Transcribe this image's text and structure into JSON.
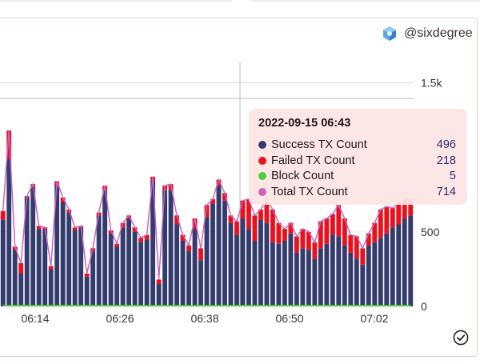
{
  "brand": {
    "name": "@sixdegree",
    "logo_icon": "cube-logo-icon"
  },
  "tooltip": {
    "title": "2022-09-15 06:43",
    "items": [
      {
        "name": "Success TX Count",
        "value": "496",
        "color": "#343c6e"
      },
      {
        "name": "Failed TX Count",
        "value": "218",
        "color": "#e8121f"
      },
      {
        "name": "Block Count",
        "value": "5",
        "color": "#4fcf3a"
      },
      {
        "name": "Total TX Count",
        "value": "714",
        "color": "#c865c0"
      }
    ]
  },
  "footer": {
    "status_icon": "check-circle-icon"
  },
  "chart_data": {
    "type": "bar",
    "stacked": true,
    "x_ticks": [
      "06:14",
      "06:26",
      "06:38",
      "06:50",
      "07:02"
    ],
    "y_ticks": [
      "0",
      "500",
      "1.5k"
    ],
    "ylim": [
      0,
      1550
    ],
    "grid": "horizontal",
    "crosshair_x": "06:43",
    "series": [
      {
        "name": "Success TX Count",
        "kind": "bar",
        "color": "#343c6e",
        "values": [
          580,
          990,
          380,
          220,
          730,
          800,
          520,
          520,
          250,
          810,
          700,
          630,
          510,
          530,
          200,
          370,
          610,
          780,
          490,
          400,
          530,
          590,
          500,
          430,
          450,
          840,
          150,
          780,
          780,
          550,
          440,
          370,
          520,
          310,
          600,
          690,
          810,
          710,
          560,
          480,
          590,
          520,
          440,
          580,
          560,
          430,
          420,
          440,
          490,
          360,
          390,
          380,
          320,
          390,
          420,
          480,
          470,
          410,
          360,
          320,
          280,
          410,
          430,
          460,
          490,
          530,
          550,
          590,
          610
        ]
      },
      {
        "name": "Failed TX Count",
        "kind": "bar",
        "color": "#e8121f",
        "values": [
          60,
          190,
          20,
          70,
          10,
          20,
          20,
          10,
          20,
          30,
          30,
          20,
          20,
          10,
          20,
          20,
          20,
          30,
          20,
          20,
          30,
          20,
          30,
          30,
          30,
          30,
          30,
          30,
          40,
          60,
          40,
          40,
          70,
          80,
          80,
          30,
          40,
          50,
          50,
          90,
          120,
          200,
          170,
          70,
          160,
          220,
          140,
          80,
          70,
          110,
          130,
          120,
          110,
          180,
          170,
          140,
          210,
          180,
          120,
          150,
          110,
          80,
          130,
          190,
          180,
          130,
          140,
          130,
          110
        ]
      },
      {
        "name": "Block Count",
        "kind": "line",
        "color": "#4fcf3a",
        "values": [
          5,
          5,
          5,
          5,
          5,
          5,
          5,
          5,
          5,
          5,
          5,
          5,
          5,
          5,
          5,
          5,
          5,
          5,
          5,
          5,
          5,
          5,
          5,
          5,
          5,
          5,
          5,
          5,
          5,
          5,
          5,
          5,
          5,
          5,
          5,
          5,
          5,
          5,
          5,
          5,
          5,
          5,
          5,
          5,
          5,
          5,
          5,
          5,
          5,
          5,
          5,
          5,
          5,
          5,
          5,
          5,
          5,
          5,
          5,
          5,
          5,
          5,
          5,
          5,
          5,
          5,
          5,
          5,
          5
        ]
      },
      {
        "name": "Total TX Count",
        "kind": "line",
        "color": "#c865c0",
        "values": [
          640,
          1180,
          400,
          290,
          740,
          820,
          540,
          530,
          270,
          840,
          730,
          650,
          530,
          540,
          220,
          390,
          630,
          810,
          510,
          420,
          560,
          610,
          530,
          460,
          480,
          870,
          180,
          810,
          820,
          610,
          480,
          410,
          590,
          390,
          680,
          720,
          850,
          760,
          610,
          570,
          710,
          720,
          610,
          650,
          720,
          650,
          560,
          520,
          560,
          470,
          520,
          500,
          430,
          570,
          590,
          620,
          680,
          590,
          480,
          470,
          390,
          490,
          560,
          650,
          670,
          660,
          690,
          720,
          720
        ]
      }
    ]
  }
}
